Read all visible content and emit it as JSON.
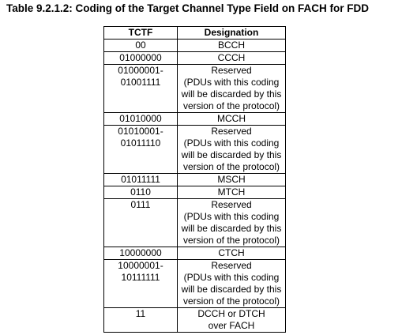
{
  "caption": "Table 9.2.1.2: Coding of the Target Channel Type Field on FACH for FDD",
  "table": {
    "headers": [
      "TCTF",
      "Designation"
    ],
    "rows": [
      {
        "tctf": [
          "00"
        ],
        "designation": [
          "BCCH"
        ]
      },
      {
        "tctf": [
          "01000000"
        ],
        "designation": [
          "CCCH"
        ]
      },
      {
        "tctf": [
          "01000001-",
          "01001111"
        ],
        "designation": [
          "Reserved",
          "(PDUs with this coding",
          "will be discarded by this",
          "version of the protocol)"
        ]
      },
      {
        "tctf": [
          "01010000"
        ],
        "designation": [
          "MCCH"
        ]
      },
      {
        "tctf": [
          "01010001-",
          "01011110"
        ],
        "designation": [
          "Reserved",
          "(PDUs with this coding",
          "will be discarded by this",
          "version of the protocol)"
        ]
      },
      {
        "tctf": [
          "01011111"
        ],
        "designation": [
          "MSCH"
        ]
      },
      {
        "tctf": [
          "0110"
        ],
        "designation": [
          "MTCH"
        ]
      },
      {
        "tctf": [
          "0111"
        ],
        "designation": [
          "Reserved",
          "(PDUs with this coding",
          "will be discarded by this",
          "version of the protocol)"
        ]
      },
      {
        "tctf": [
          "10000000"
        ],
        "designation": [
          "CTCH"
        ]
      },
      {
        "tctf": [
          "10000001-",
          "10111111"
        ],
        "designation": [
          "Reserved",
          "(PDUs with this coding",
          "will be discarded by this",
          "version of the protocol)"
        ]
      },
      {
        "tctf": [
          "11"
        ],
        "designation": [
          "DCCH or DTCH",
          "over FACH"
        ]
      }
    ]
  }
}
